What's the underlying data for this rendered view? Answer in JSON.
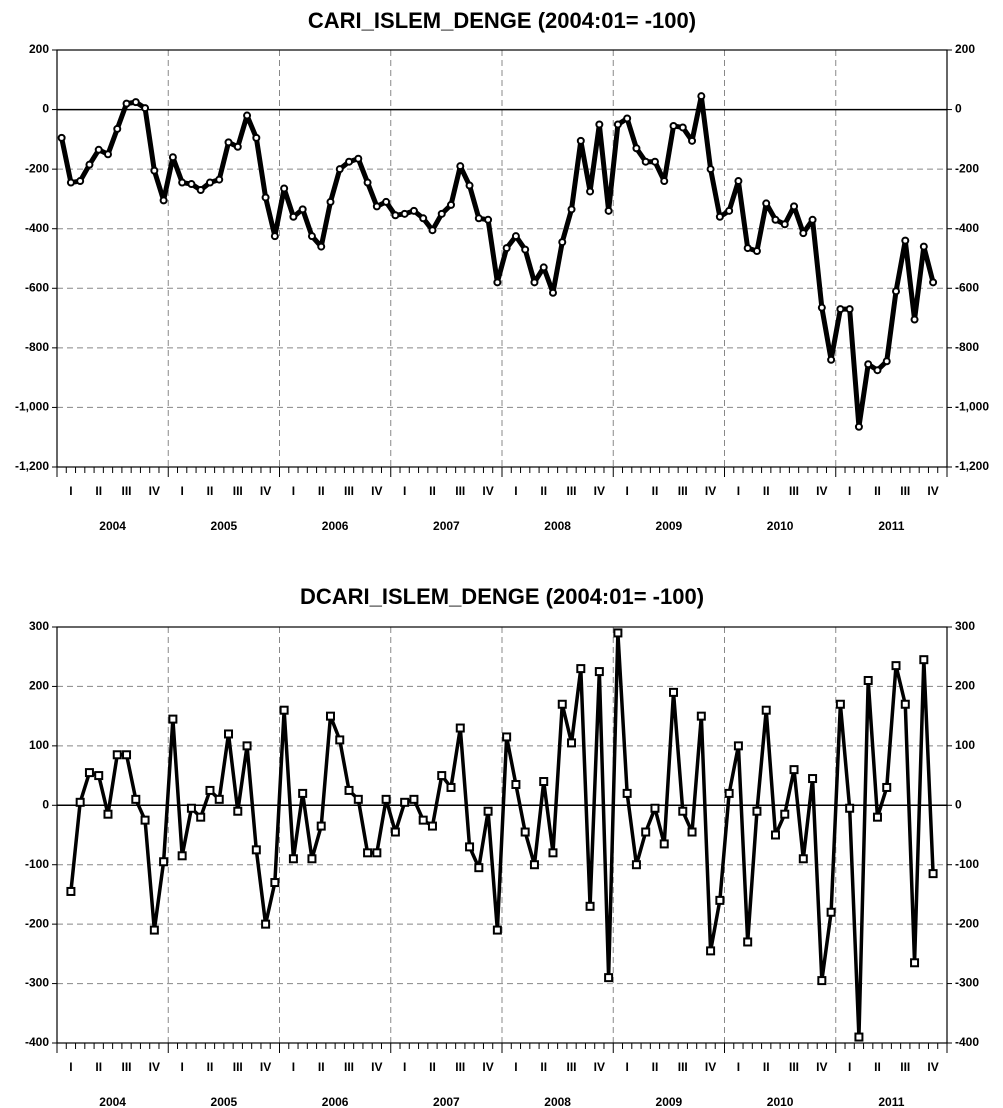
{
  "chart_data": [
    {
      "type": "line",
      "title": "CARI_ISLEM_DENGE  (2004:01= -100)",
      "marker": "circle",
      "color": "#000000",
      "quarters": [
        "I",
        "II",
        "III",
        "IV",
        "I",
        "II",
        "III",
        "IV",
        "I",
        "II",
        "III",
        "IV",
        "I",
        "II",
        "III",
        "IV",
        "I",
        "II",
        "III",
        "IV",
        "I",
        "II",
        "III",
        "IV",
        "I",
        "II",
        "III",
        "IV",
        "I",
        "II",
        "III",
        "IV"
      ],
      "years": [
        "2004",
        "2005",
        "2006",
        "2007",
        "2008",
        "2009",
        "2010",
        "2011"
      ],
      "values": [
        -95,
        -245,
        -240,
        -185,
        -135,
        -150,
        -65,
        20,
        25,
        5,
        -205,
        -305,
        -160,
        -245,
        -250,
        -270,
        -245,
        -235,
        -110,
        -125,
        -20,
        -95,
        -295,
        -425,
        -265,
        -360,
        -335,
        -425,
        -460,
        -310,
        -200,
        -175,
        -165,
        -245,
        -325,
        -310,
        -355,
        -350,
        -340,
        -365,
        -405,
        -350,
        -320,
        -190,
        -255,
        -365,
        -370,
        -580,
        -465,
        -425,
        -470,
        -580,
        -530,
        -615,
        -445,
        -335,
        -105,
        -275,
        -50,
        -340,
        -50,
        -30,
        -130,
        -175,
        -175,
        -240,
        -55,
        -60,
        -105,
        45,
        -200,
        -360,
        -340,
        -240,
        -465,
        -475,
        -315,
        -370,
        -385,
        -325,
        -415,
        -370,
        -665,
        -840,
        -670,
        -670,
        -1065,
        -855,
        -875,
        -845,
        -610,
        -440,
        -705,
        -460,
        -580
      ],
      "ylim": [
        -1200,
        200
      ],
      "yticks": [
        200,
        0,
        -200,
        -400,
        -600,
        -800,
        {
          "value": -1000,
          "label": "-1,000"
        },
        {
          "value": -1200,
          "label": "-1,200"
        }
      ],
      "grid": true
    },
    {
      "type": "line",
      "title": "DCARI_ISLEM_DENGE  (2004:01= -100)",
      "marker": "square",
      "color": "#000000",
      "quarters": [
        "I",
        "II",
        "III",
        "IV",
        "I",
        "II",
        "III",
        "IV",
        "I",
        "II",
        "III",
        "IV",
        "I",
        "II",
        "III",
        "IV",
        "I",
        "II",
        "III",
        "IV",
        "I",
        "II",
        "III",
        "IV",
        "I",
        "II",
        "III",
        "IV",
        "I",
        "II",
        "III",
        "IV"
      ],
      "years": [
        "2004",
        "2005",
        "2006",
        "2007",
        "2008",
        "2009",
        "2010",
        "2011"
      ],
      "values": [
        null,
        -145,
        5,
        55,
        50,
        -15,
        85,
        85,
        10,
        -25,
        -210,
        -95,
        145,
        -85,
        -5,
        -20,
        25,
        10,
        120,
        -10,
        100,
        -75,
        -200,
        -130,
        160,
        -90,
        20,
        -90,
        -35,
        150,
        110,
        25,
        10,
        -80,
        -80,
        10,
        -45,
        5,
        10,
        -25,
        -35,
        50,
        30,
        130,
        -70,
        -105,
        -10,
        -210,
        115,
        35,
        -45,
        -100,
        40,
        -80,
        170,
        105,
        230,
        -170,
        225,
        -290,
        290,
        20,
        -100,
        -45,
        -5,
        -65,
        190,
        -10,
        -45,
        150,
        -245,
        -160,
        20,
        100,
        -230,
        -10,
        160,
        -50,
        -15,
        60,
        -90,
        45,
        -295,
        -180,
        170,
        -5,
        -390,
        210,
        -20,
        30,
        235,
        170,
        -265,
        245,
        -115
      ],
      "ylim": [
        -400,
        300
      ],
      "yticks": [
        300,
        200,
        100,
        0,
        -100,
        -200,
        -300,
        -400
      ],
      "grid": true
    }
  ]
}
